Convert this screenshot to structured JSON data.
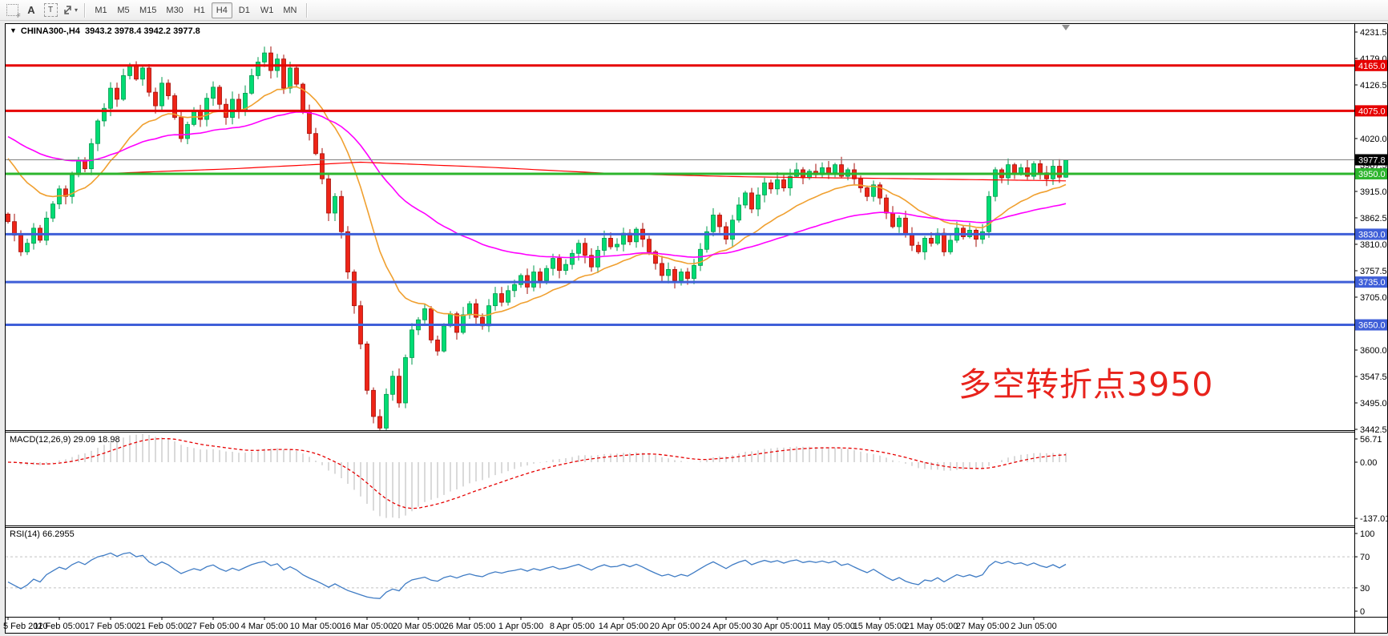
{
  "toolbar": {
    "tools": [
      {
        "name": "frame-f-icon",
        "label": "F"
      },
      {
        "name": "text-a-icon",
        "label": "A"
      },
      {
        "name": "text-box-icon",
        "label": "T"
      },
      {
        "name": "diagonal-arrows-icon",
        "label": ""
      }
    ],
    "timeframes": [
      "M1",
      "M5",
      "M15",
      "M30",
      "H1",
      "H4",
      "D1",
      "W1",
      "MN"
    ],
    "active_timeframe": "H4",
    "dropdown_caret": "▾"
  },
  "chart": {
    "symbol_header": {
      "collapse_triangle": "▼",
      "symbol": "CHINA300-,H4",
      "ohlc": [
        "3943.2",
        "3978.4",
        "3942.2",
        "3977.8"
      ]
    },
    "annotation": {
      "text": "多空转折点3950",
      "color": "#e8231c"
    }
  },
  "indicators": {
    "macd": {
      "label": "MACD(12,26,9) 29.09 18.98"
    },
    "rsi": {
      "label": "RSI(14) 66.2955"
    }
  },
  "chart_data": {
    "type": "candlestick",
    "symbol": "CHINA300-,H4",
    "timeframe": "H4",
    "last_quote": {
      "open": 3943.2,
      "high": 3978.4,
      "low": 3942.2,
      "close": 3977.8
    },
    "price_axis": {
      "range": [
        3442.5,
        4231.5
      ],
      "ticks": [
        4231.5,
        4179.0,
        4126.5,
        4020.0,
        3967.5,
        3915.0,
        3862.5,
        3810.0,
        3757.5,
        3705.0,
        3600.0,
        3547.5,
        3495.0,
        3442.5
      ]
    },
    "time_axis": [
      "5 Feb 2020",
      "11 Feb 05:00",
      "17 Feb 05:00",
      "21 Feb 05:00",
      "27 Feb 05:00",
      "4 Mar 05:00",
      "10 Mar 05:00",
      "16 Mar 05:00",
      "20 Mar 05:00",
      "26 Mar 05:00",
      "1 Apr 05:00",
      "8 Apr 05:00",
      "14 Apr 05:00",
      "20 Apr 05:00",
      "24 Apr 05:00",
      "30 Apr 05:00",
      "11 May 05:00",
      "15 May 05:00",
      "21 May 05:00",
      "27 May 05:00",
      "2 Jun 05:00"
    ],
    "closes": [
      3855,
      3828,
      3795,
      3812,
      3842,
      3818,
      3862,
      3890,
      3920,
      3905,
      3948,
      3978,
      3960,
      4010,
      4055,
      4080,
      4120,
      4098,
      4145,
      4165,
      4138,
      4160,
      4112,
      4085,
      4130,
      4105,
      4062,
      4020,
      4048,
      4075,
      4058,
      4100,
      4122,
      4088,
      4062,
      4098,
      4075,
      4110,
      4145,
      4172,
      4190,
      4155,
      4178,
      4120,
      4160,
      4128,
      4072,
      4030,
      3990,
      3940,
      3872,
      3905,
      3835,
      3755,
      3688,
      3612,
      3520,
      3468,
      3445,
      3512,
      3548,
      3495,
      3585,
      3640,
      3660,
      3682,
      3620,
      3598,
      3648,
      3672,
      3635,
      3670,
      3692,
      3665,
      3648,
      3688,
      3712,
      3695,
      3718,
      3730,
      3748,
      3725,
      3755,
      3738,
      3762,
      3782,
      3758,
      3770,
      3792,
      3812,
      3788,
      3765,
      3798,
      3822,
      3805,
      3810,
      3832,
      3815,
      3840,
      3820,
      3795,
      3772,
      3748,
      3760,
      3738,
      3755,
      3742,
      3768,
      3800,
      3835,
      3868,
      3845,
      3820,
      3858,
      3888,
      3912,
      3880,
      3908,
      3932,
      3920,
      3938,
      3922,
      3945,
      3958,
      3942,
      3955,
      3948,
      3962,
      3952,
      3968,
      3945,
      3958,
      3940,
      3922,
      3905,
      3928,
      3902,
      3872,
      3845,
      3862,
      3830,
      3808,
      3795,
      3822,
      3812,
      3832,
      3795,
      3818,
      3842,
      3825,
      3838,
      3820,
      3835,
      3905,
      3958,
      3942,
      3968,
      3950,
      3962,
      3945,
      3970,
      3952,
      3940,
      3965,
      3943.2,
      3977.8
    ],
    "hlines": [
      {
        "price": 4165.0,
        "label": "4165.0",
        "color": "#e60000",
        "role": "resistance"
      },
      {
        "price": 4075.0,
        "label": "4075.0",
        "color": "#e60000",
        "role": "resistance"
      },
      {
        "price": 3950.0,
        "label": "3950.0",
        "color": "#2db52d",
        "role": "pivot"
      },
      {
        "price": 3830.0,
        "label": "3830.0",
        "color": "#3f5fd8",
        "role": "support"
      },
      {
        "price": 3735.0,
        "label": "3735.0",
        "color": "#3f5fd8",
        "role": "support"
      },
      {
        "price": 3650.0,
        "label": "3650.0",
        "color": "#3f5fd8",
        "role": "support"
      }
    ],
    "current_price": {
      "value": 3977.8,
      "label": "3977.8",
      "line_color": "#808080",
      "tag_bg": "#000000"
    },
    "candle_colors": {
      "up": "#00dc74",
      "up_border": "#009a4c",
      "down": "#ee2417",
      "down_border": "#a60f08"
    },
    "moving_averages": [
      {
        "name": "ma-fast",
        "color": "#f0a030",
        "period": 18,
        "seed": 3995
      },
      {
        "name": "ma-medium",
        "color": "#ff00ff",
        "period": 55,
        "seed": 4030
      },
      {
        "name": "ma-slow",
        "color": "#ff0000",
        "waypoints": [
          [
            14,
            3950
          ],
          [
            35,
            3960
          ],
          [
            55,
            3973
          ],
          [
            75,
            3963
          ],
          [
            95,
            3950
          ],
          [
            115,
            3944
          ],
          [
            135,
            3941
          ],
          [
            165,
            3936
          ]
        ]
      }
    ],
    "macd": {
      "fast": 12,
      "slow": 26,
      "signal": 9,
      "value": 29.09,
      "signal_value": 18.98,
      "axis_ticks": [
        56.71,
        0.0,
        -137.01
      ],
      "histogram_color": "#b4b4b4",
      "signal_color": "#e60000"
    },
    "rsi": {
      "period": 14,
      "value": 66.2955,
      "axis_ticks": [
        100,
        70,
        30,
        0
      ],
      "levels": [
        70,
        30
      ],
      "line_color": "#3e7bc4",
      "level_color": "#c2c2c2"
    }
  }
}
